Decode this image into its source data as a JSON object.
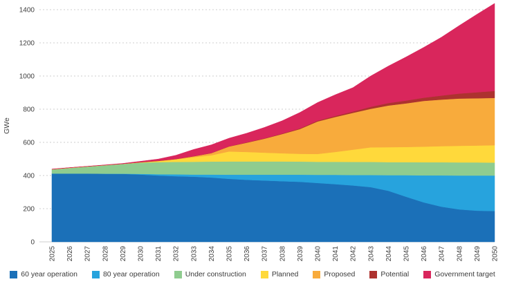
{
  "chart_data": {
    "type": "area",
    "stacked": true,
    "title": "",
    "xlabel": "",
    "ylabel": "GWe",
    "ylim": [
      0,
      1400
    ],
    "ytick_step": 200,
    "grid": true,
    "legend_position": "bottom",
    "axis_text_color": "#3d3d3d",
    "grid_color": "#cccccc",
    "categories": [
      "2025",
      "2026",
      "2027",
      "2028",
      "2029",
      "2030",
      "2031",
      "2032",
      "2033",
      "2034",
      "2035",
      "2036",
      "2037",
      "2038",
      "2039",
      "2040",
      "2041",
      "2042",
      "2043",
      "2044",
      "2045",
      "2046",
      "2047",
      "2048",
      "2049",
      "2050"
    ],
    "series": [
      {
        "name": "60 year operation",
        "color": "#1b70b8",
        "values": [
          412,
          412,
          412,
          411,
          410,
          406,
          400,
          396,
          393,
          388,
          380,
          374,
          370,
          366,
          362,
          355,
          348,
          340,
          330,
          308,
          272,
          238,
          212,
          196,
          188,
          186
        ]
      },
      {
        "name": "80 year operation",
        "color": "#27a3dd",
        "values": [
          0,
          0,
          0,
          0,
          1,
          4,
          8,
          11,
          13,
          18,
          25,
          31,
          35,
          39,
          43,
          49,
          56,
          63,
          73,
          94,
          130,
          163,
          189,
          204,
          212,
          214
        ]
      },
      {
        "name": "Under construction",
        "color": "#8fcc8f",
        "values": [
          25,
          34,
          42,
          51,
          59,
          68,
          73,
          75,
          77,
          78,
          80,
          80,
          80,
          80,
          79,
          79,
          79,
          79,
          79,
          79,
          79,
          79,
          79,
          79,
          79,
          78
        ]
      },
      {
        "name": "Planned",
        "color": "#ffd93b",
        "values": [
          0,
          0,
          0,
          0,
          0,
          1,
          6,
          15,
          28,
          38,
          60,
          57,
          53,
          49,
          47,
          47,
          59,
          74,
          88,
          90,
          91,
          94,
          97,
          100,
          102,
          105
        ]
      },
      {
        "name": "Proposed",
        "color": "#f8ab3c",
        "values": [
          1,
          1,
          1,
          1,
          1,
          1,
          1,
          2,
          5,
          13,
          30,
          56,
          84,
          116,
          149,
          196,
          211,
          222,
          232,
          251,
          263,
          276,
          281,
          285,
          285,
          285
        ]
      },
      {
        "name": "Potential",
        "color": "#ad322f",
        "values": [
          0,
          0,
          0,
          0,
          0,
          1,
          1,
          1,
          1,
          1,
          1,
          2,
          2,
          3,
          4,
          5,
          6,
          8,
          12,
          15,
          17,
          19,
          24,
          30,
          36,
          42
        ]
      },
      {
        "name": "Government target",
        "color": "#d9265c",
        "values": [
          1,
          1,
          1,
          1,
          2,
          5,
          10,
          22,
          40,
          49,
          49,
          55,
          66,
          77,
          96,
          109,
          128,
          144,
          186,
          223,
          263,
          304,
          352,
          410,
          470,
          528
        ]
      }
    ]
  }
}
